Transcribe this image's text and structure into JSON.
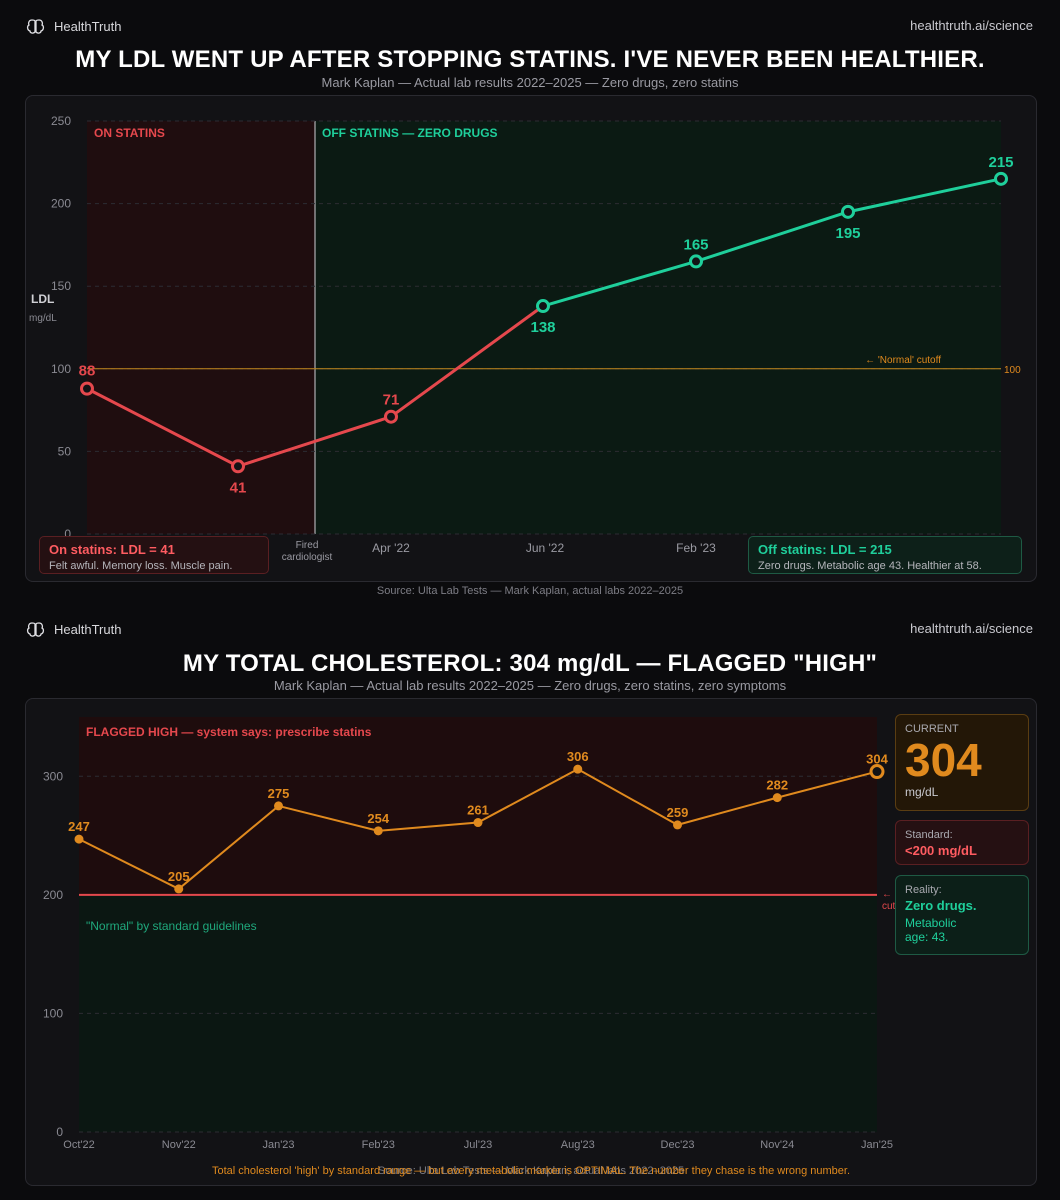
{
  "brand": {
    "name": "HealthTruth",
    "url": "healthtruth.ai/science"
  },
  "colors": {
    "red": "#e5484d",
    "teal": "#1fcf9b",
    "orange": "#e08a1e",
    "bg": "#0b0b0d"
  },
  "chart1": {
    "title": "MY LDL WENT UP AFTER STOPPING STATINS. I'VE NEVER BEEN HEALTHIER.",
    "subtitle": "Mark Kaplan — Actual lab results 2022–2025 — Zero drugs, zero statins",
    "source": "Source: Ulta Lab Tests — Mark Kaplan, actual labs 2022–2025",
    "callout_on": {
      "head": "On statins:  LDL = 41",
      "sub": "Felt awful. Memory loss. Muscle pain."
    },
    "callout_off": {
      "head": "Off statins: LDL = 215",
      "sub": "Zero drugs. Metabolic age 43. Healthier at 58."
    }
  },
  "chart2": {
    "title": "MY TOTAL CHOLESTEROL: 304 mg/dL — FLAGGED \"HIGH\"",
    "subtitle": "Mark Kaplan — Actual lab results 2022–2025 — Zero drugs, zero statins, zero symptoms",
    "cards": {
      "current_label": "CURRENT",
      "current_value": "304",
      "current_unit": "mg/dL",
      "standard_label": "Standard:",
      "standard_value": "<200 mg/dL",
      "reality_label": "Reality:",
      "reality_value": "Zero drugs.",
      "reality_sub": "Metabolic age: 43."
    },
    "footer_orange": "Total cholesterol 'high' by standard range — but every metabolic marker is OPTIMAL. The number they chase is the wrong number.",
    "footer_source": "Source: Ulta Lab Tests — Mark Kaplan, actual labs 2022–2025"
  },
  "chart_data": [
    {
      "type": "line",
      "ylabel": "LDL",
      "yunit": "mg/dL",
      "ylim": [
        0,
        250
      ],
      "yticks": [
        0,
        50,
        100,
        150,
        200,
        250
      ],
      "grid": true,
      "x_labels": [
        "Fired cardiologist",
        "Apr '22",
        "Jun '22",
        "Feb '23"
      ],
      "regions": [
        {
          "label": "ON STATINS",
          "color": "#e5484d"
        },
        {
          "label": "OFF STATINS — ZERO DRUGS",
          "color": "#1fcf9b"
        }
      ],
      "reference": {
        "value": 100,
        "label": "← 'Normal' cutoff",
        "value_label": "100"
      },
      "series": [
        {
          "phase": "on statins",
          "points": [
            {
              "x": "",
              "y": 88
            },
            {
              "x": "",
              "y": 41
            },
            {
              "x": "Apr '22",
              "y": 71
            },
            {
              "x": "Jun '22",
              "y": 138
            }
          ],
          "color": "#e5484d"
        },
        {
          "phase": "off statins",
          "points": [
            {
              "x": "Jun '22",
              "y": 138
            },
            {
              "x": "Feb '23",
              "y": 165
            },
            {
              "x": "",
              "y": 195
            },
            {
              "x": "",
              "y": 215
            }
          ],
          "color": "#1fcf9b"
        }
      ]
    },
    {
      "type": "line",
      "ylim": [
        0,
        350
      ],
      "yticks": [
        0,
        100,
        200,
        300
      ],
      "grid": true,
      "categories": [
        "Oct'22",
        "Nov'22",
        "Jan'23",
        "Feb'23",
        "Jul'23",
        "Aug'23",
        "Dec'23",
        "Nov'24",
        "Jan'25"
      ],
      "values": [
        247,
        205,
        275,
        254,
        261,
        306,
        259,
        282,
        304
      ],
      "color": "#e08a1e",
      "regions": [
        {
          "label": "FLAGGED HIGH — system says: prescribe statins",
          "from": 200,
          "to": 350,
          "color": "#e5484d"
        },
        {
          "label": "\"Normal\" by standard guidelines",
          "from": 0,
          "to": 200,
          "color": "#1fcf9b"
        }
      ],
      "reference": {
        "value": 200,
        "label": "← cutoff"
      }
    }
  ]
}
